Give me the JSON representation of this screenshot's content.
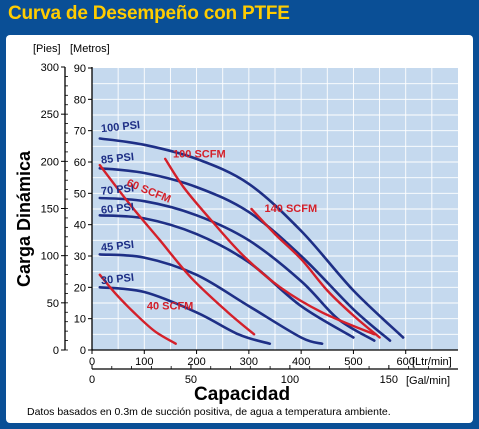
{
  "chart_data": {
    "type": "line",
    "title": "Curva de Desempeño con PTFE",
    "ylabel": "Carga Dinámica",
    "xlabel": "Capacidad",
    "y_unit_left": "[Pies]",
    "y_unit_right": "[Metros]",
    "x_unit_top": "[Ltr/min]",
    "x_unit_bottom": "[Gal/min]",
    "footnote": "Datos basados en 0.3m de succión positiva, de agua a temperatura ambiente.",
    "y_ticks_ft": [
      "0",
      "50",
      "100",
      "150",
      "200",
      "250",
      "300"
    ],
    "y_ticks_m": [
      "0",
      "10",
      "20",
      "30",
      "40",
      "50",
      "60",
      "70",
      "80",
      "90"
    ],
    "x_ticks_lpm": [
      "0",
      "100",
      "200",
      "300",
      "400",
      "500",
      "600"
    ],
    "x_ticks_gpm": [
      "0",
      "50",
      "100",
      "150"
    ],
    "xlim_lpm": [
      0,
      700
    ],
    "ylim_m": [
      0,
      90
    ],
    "grid": true,
    "colors": {
      "psi": "#1e2f86",
      "scfm": "#d4202a",
      "plot_bg": "#c5d9ee"
    },
    "series_psi": [
      {
        "name": "100 PSI",
        "points": [
          [
            15,
            67.5
          ],
          [
            100,
            65.5
          ],
          [
            200,
            61
          ],
          [
            300,
            53
          ],
          [
            400,
            38
          ],
          [
            500,
            19
          ],
          [
            595,
            4
          ]
        ]
      },
      {
        "name": "85 PSI",
        "points": [
          [
            15,
            58
          ],
          [
            100,
            56.5
          ],
          [
            200,
            52
          ],
          [
            300,
            44
          ],
          [
            400,
            30
          ],
          [
            500,
            13
          ],
          [
            570,
            3
          ]
        ]
      },
      {
        "name": "70 PSI",
        "points": [
          [
            15,
            48.5
          ],
          [
            100,
            47.5
          ],
          [
            200,
            43
          ],
          [
            300,
            35
          ],
          [
            400,
            22
          ],
          [
            470,
            10
          ],
          [
            540,
            3
          ]
        ]
      },
      {
        "name": "60 PSI",
        "points": [
          [
            15,
            43
          ],
          [
            100,
            42
          ],
          [
            200,
            37
          ],
          [
            300,
            28
          ],
          [
            400,
            14
          ],
          [
            500,
            4
          ]
        ]
      },
      {
        "name": "45 PSI",
        "points": [
          [
            15,
            30.5
          ],
          [
            100,
            29.5
          ],
          [
            200,
            24
          ],
          [
            300,
            14
          ],
          [
            400,
            4
          ],
          [
            440,
            2
          ]
        ]
      },
      {
        "name": "30 PSI",
        "points": [
          [
            15,
            20
          ],
          [
            100,
            18.5
          ],
          [
            200,
            12
          ],
          [
            280,
            5
          ],
          [
            340,
            2
          ]
        ]
      }
    ],
    "series_scfm": [
      {
        "name": "100 SCFM",
        "points": [
          [
            140,
            61
          ],
          [
            175,
            52
          ],
          [
            230,
            41
          ],
          [
            290,
            30
          ],
          [
            360,
            20
          ],
          [
            440,
            12
          ],
          [
            540,
            5
          ]
        ]
      },
      {
        "name": "140 SCFM",
        "points": [
          [
            305,
            45
          ],
          [
            350,
            37
          ],
          [
            400,
            29
          ],
          [
            450,
            19
          ],
          [
            500,
            11
          ],
          [
            550,
            4
          ]
        ]
      },
      {
        "name": "60 SCFM",
        "points": [
          [
            15,
            59
          ],
          [
            70,
            47
          ],
          [
            130,
            35
          ],
          [
            190,
            23
          ],
          [
            260,
            12
          ],
          [
            310,
            5
          ]
        ]
      },
      {
        "name": "40 SCFM",
        "points": [
          [
            15,
            24
          ],
          [
            45,
            18
          ],
          [
            80,
            12
          ],
          [
            120,
            6
          ],
          [
            160,
            2
          ]
        ]
      }
    ],
    "labels_psi": [
      {
        "text": "100 PSI",
        "x": 18,
        "y": 69.5
      },
      {
        "text": "85 PSI",
        "x": 18,
        "y": 59.5
      },
      {
        "text": "70 PSI",
        "x": 18,
        "y": 49.5
      },
      {
        "text": "60 PSI",
        "x": 18,
        "y": 43.5
      },
      {
        "text": "45 PSI",
        "x": 18,
        "y": 31.5
      },
      {
        "text": "30 PSI",
        "x": 18,
        "y": 21
      }
    ],
    "labels_scfm": [
      {
        "text": "100 SCFM",
        "x": 155,
        "y": 61.5
      },
      {
        "text": "60 SCFM",
        "x": 65,
        "y": 52.5
      },
      {
        "text": "140 SCFM",
        "x": 330,
        "y": 44
      },
      {
        "text": "40 SCFM",
        "x": 105,
        "y": 13
      }
    ]
  }
}
